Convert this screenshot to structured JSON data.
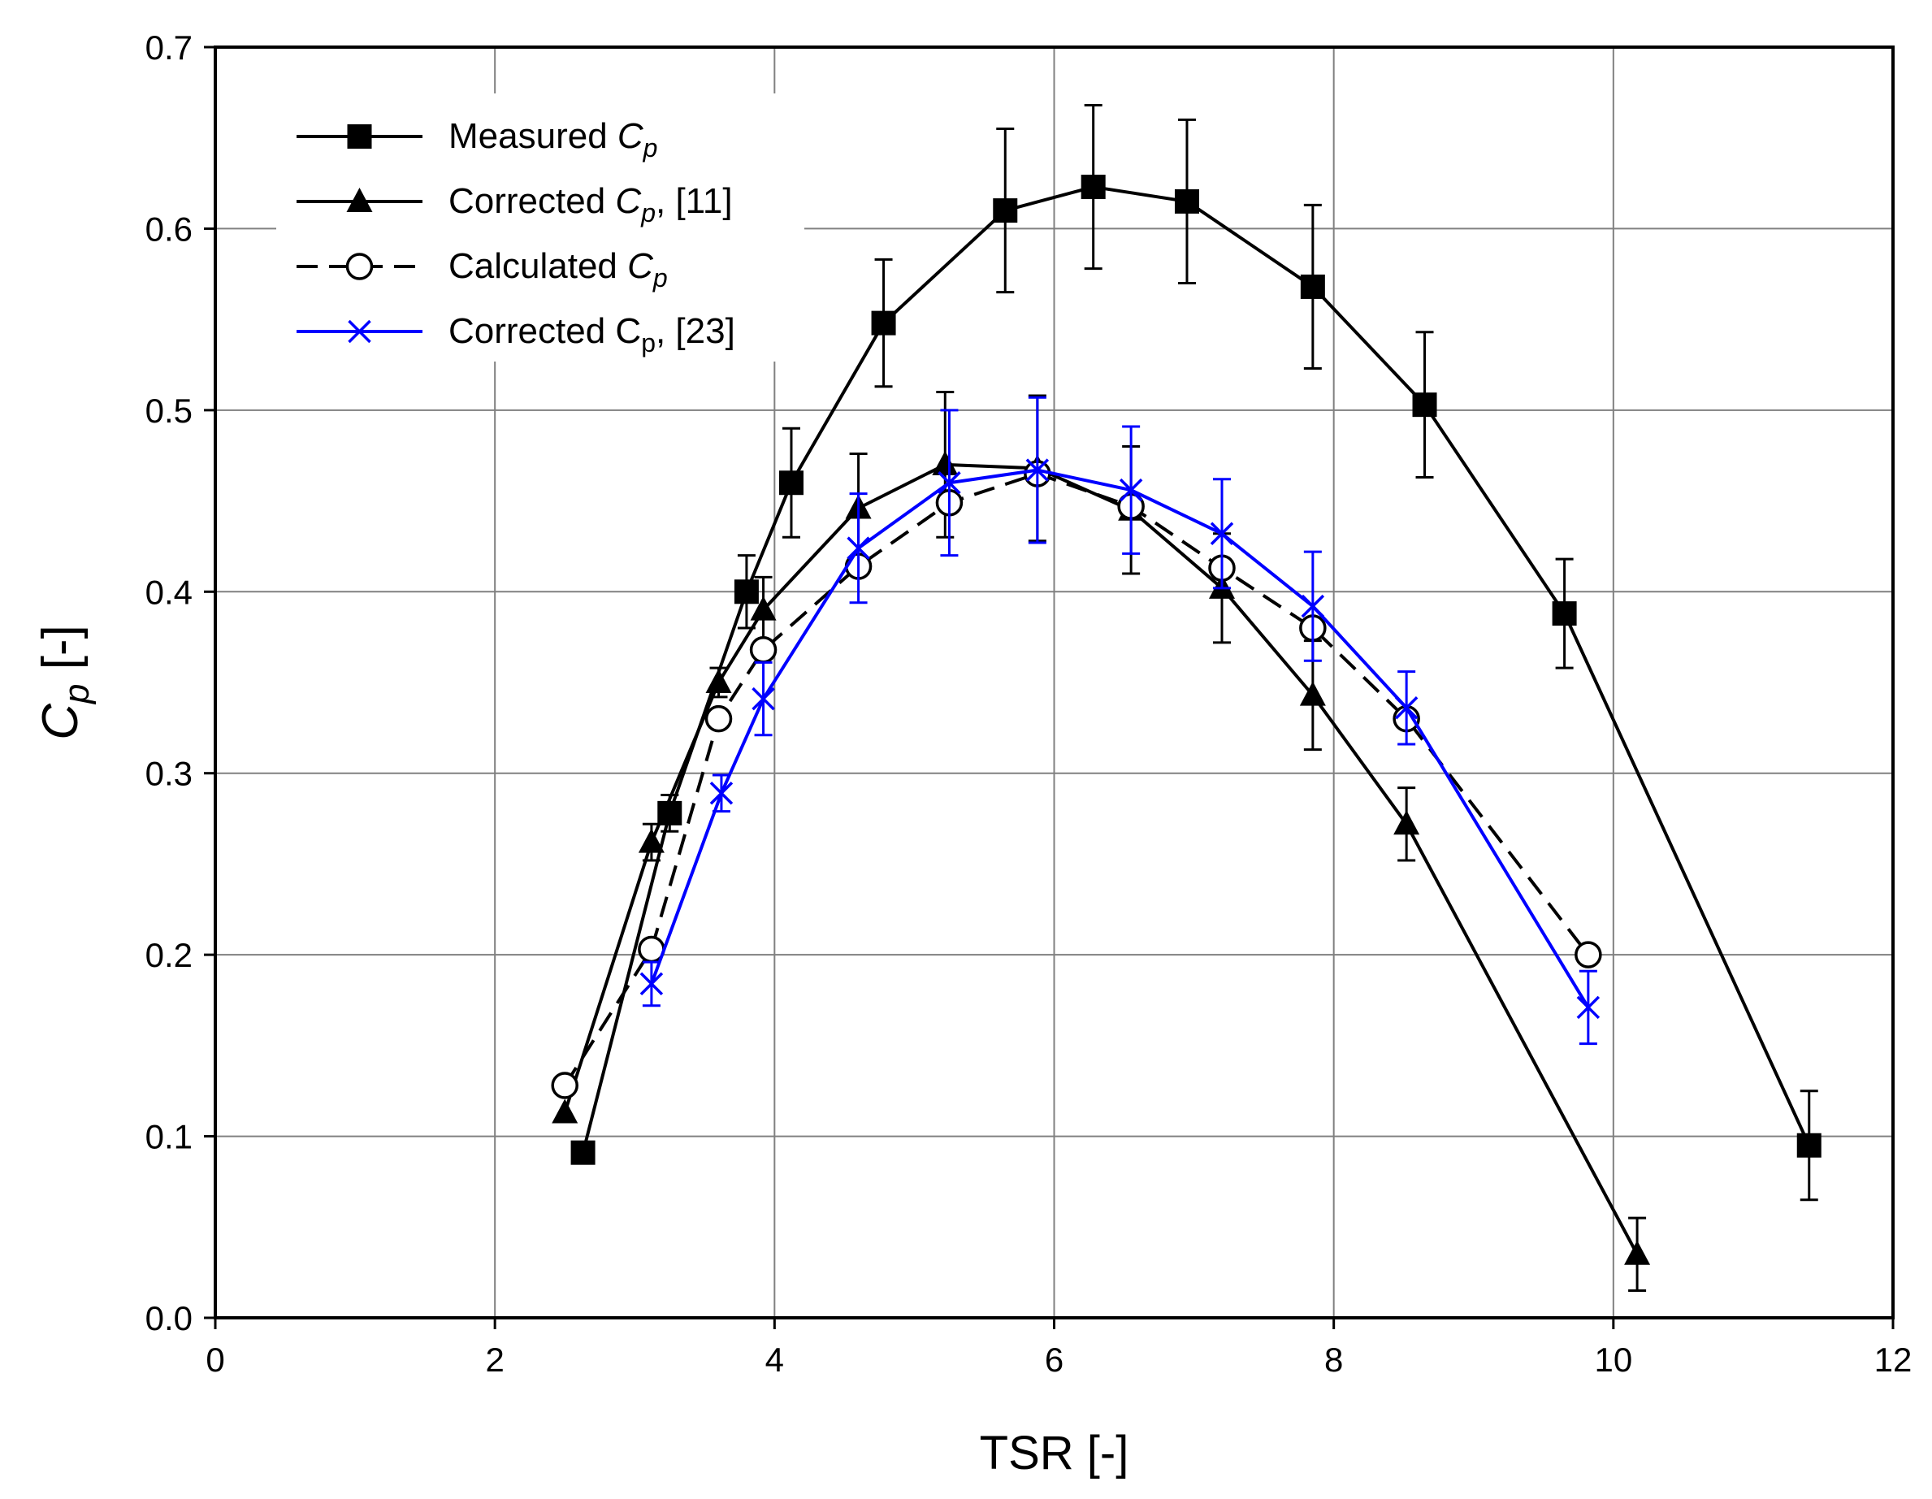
{
  "chart_data": {
    "type": "line",
    "title": "",
    "xlabel": "TSR [-]",
    "ylabel": {
      "main": "C",
      "sub": "p",
      "rest": " [-]"
    },
    "xlim": [
      0,
      12
    ],
    "ylim": [
      0.0,
      0.7
    ],
    "xticks": [
      0,
      2,
      4,
      6,
      8,
      10,
      12
    ],
    "yticks": [
      0.0,
      0.1,
      0.2,
      0.3,
      0.4,
      0.5,
      0.6,
      0.7
    ],
    "xtick_labels": [
      "0",
      "2",
      "4",
      "6",
      "8",
      "10",
      "12"
    ],
    "ytick_labels": [
      "0.0",
      "0.1",
      "0.2",
      "0.3",
      "0.4",
      "0.5",
      "0.6",
      "0.7"
    ],
    "grid": true,
    "legend_position": "top-left",
    "series": [
      {
        "name": "Measured Cp",
        "legend": {
          "text": "Measured ",
          "italic": "C",
          "sub": "p",
          "suffix": ""
        },
        "color": "#000000",
        "marker": "filled-square",
        "dashed": false,
        "x": [
          2.63,
          3.25,
          3.8,
          4.12,
          4.78,
          5.65,
          6.28,
          6.95,
          7.85,
          8.65,
          9.65,
          11.4
        ],
        "y": [
          0.091,
          0.278,
          0.4,
          0.46,
          0.548,
          0.61,
          0.623,
          0.615,
          0.568,
          0.503,
          0.388,
          0.095
        ],
        "error": [
          null,
          0.01,
          0.02,
          0.03,
          0.035,
          0.045,
          0.045,
          0.045,
          0.045,
          0.04,
          0.03,
          0.03
        ]
      },
      {
        "name": "Corrected Cp, [11]",
        "legend": {
          "text": "Corrected ",
          "italic": "C",
          "sub": "p",
          "suffix": ", [11]"
        },
        "color": "#000000",
        "marker": "filled-triangle",
        "dashed": false,
        "x": [
          2.5,
          3.12,
          3.6,
          3.92,
          4.6,
          5.22,
          5.88,
          6.55,
          7.2,
          7.85,
          8.52,
          10.17
        ],
        "y": [
          0.113,
          0.262,
          0.35,
          0.39,
          0.446,
          0.47,
          0.468,
          0.445,
          0.402,
          0.343,
          0.272,
          0.035
        ],
        "error": [
          null,
          0.01,
          0.008,
          0.018,
          0.03,
          0.04,
          0.04,
          0.035,
          0.03,
          0.03,
          0.02,
          0.02
        ]
      },
      {
        "name": "Calculated Cp",
        "legend": {
          "text": "Calculated ",
          "italic": "C",
          "sub": "p",
          "suffix": ""
        },
        "color": "#000000",
        "marker": "open-circle",
        "dashed": true,
        "x": [
          2.5,
          3.12,
          3.6,
          3.92,
          4.6,
          5.25,
          5.88,
          6.55,
          7.2,
          7.85,
          8.52,
          9.82
        ],
        "y": [
          0.128,
          0.203,
          0.33,
          0.368,
          0.414,
          0.449,
          0.465,
          0.447,
          0.413,
          0.38,
          0.33,
          0.2
        ],
        "error": [
          null,
          null,
          null,
          null,
          null,
          null,
          null,
          null,
          null,
          null,
          null,
          null
        ]
      },
      {
        "name": "Corrected Cp, [23]",
        "legend": {
          "text": "Corrected C",
          "italic": "",
          "sub": "p",
          "suffix": ", [23]"
        },
        "color": "#0000FF",
        "marker": "cross",
        "dashed": false,
        "x": [
          3.12,
          3.62,
          3.92,
          4.6,
          5.25,
          5.88,
          6.55,
          7.2,
          7.85,
          8.52,
          9.82
        ],
        "y": [
          0.184,
          0.289,
          0.341,
          0.424,
          0.46,
          0.467,
          0.456,
          0.432,
          0.392,
          0.336,
          0.171
        ],
        "error": [
          0.012,
          0.01,
          0.02,
          0.03,
          0.04,
          0.04,
          0.035,
          0.03,
          0.03,
          0.02,
          0.02
        ]
      }
    ]
  }
}
